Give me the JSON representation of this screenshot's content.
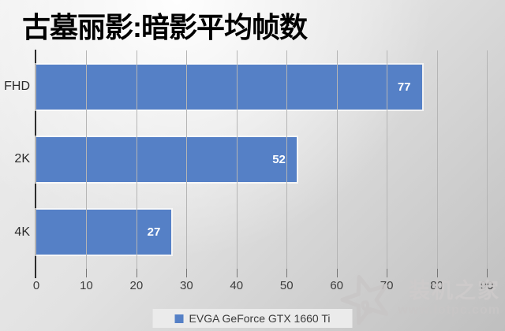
{
  "title": "古墓丽影:暗影平均帧数",
  "chart_data": {
    "type": "bar",
    "orientation": "horizontal",
    "title": "古墓丽影:暗影平均帧数",
    "categories": [
      "FHD",
      "2K",
      "4K"
    ],
    "series": [
      {
        "name": "EVGA GeForce GTX 1660 Ti",
        "values": [
          77,
          52,
          27
        ]
      }
    ],
    "xlim": [
      0,
      90
    ],
    "x_ticks": [
      0,
      10,
      20,
      30,
      40,
      50,
      60,
      70,
      80,
      90
    ],
    "grid": true,
    "legend_position": "bottom",
    "bar_color": "#5580c6",
    "value_label_color": "#ffffff"
  },
  "legend": {
    "label": "EVGA GeForce GTX 1660 Ti",
    "swatch_color": "#5580c6"
  },
  "watermark": {
    "name": "装机之家",
    "url": "www.lotpc.com",
    "logo": "star-icon"
  }
}
